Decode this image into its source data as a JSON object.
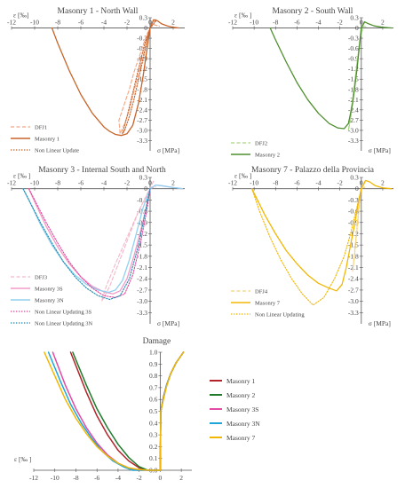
{
  "chart_data": [
    {
      "type": "line",
      "title": "Masonry 1 - North Wall",
      "xlabel": "ε [‰]",
      "ylabel": "σ [MPa]",
      "xlim": [
        -12,
        3
      ],
      "ylim": [
        -3.6,
        0.3
      ],
      "xticks": [
        -12,
        -10,
        -8,
        -6,
        -4,
        -2,
        0,
        2
      ],
      "yticks": [
        0.3,
        0,
        -0.3,
        -0.6,
        -0.9,
        -1.2,
        -1.5,
        -1.8,
        -2.1,
        -2.4,
        -2.7,
        -3.0,
        -3.3
      ],
      "legend_position": "bottom-left",
      "series": [
        {
          "name": "DFJ1",
          "color": "#f4a582",
          "style": "dashed",
          "x": [
            0.5,
            0,
            -0.3,
            -0.6,
            -0.9,
            -1.2,
            -1.5,
            -1.8,
            -2.2,
            -2.6,
            -2.7,
            -2.2,
            -1.8,
            -1.4,
            -1.0,
            -0.6,
            -0.3,
            0,
            0.3,
            0.8
          ],
          "y": [
            0.25,
            0,
            -0.4,
            -0.8,
            -1.2,
            -1.6,
            -2.0,
            -2.4,
            -2.8,
            -3.1,
            -2.7,
            -2.2,
            -1.8,
            -1.3,
            -0.9,
            -0.5,
            -0.2,
            0,
            0.1,
            0.05
          ]
        },
        {
          "name": "Masonry 1",
          "color": "#c8642a",
          "style": "solid",
          "x": [
            -8.5,
            -8,
            -7,
            -6,
            -5,
            -4,
            -3.5,
            -3,
            -2.5,
            -2,
            -1.5,
            -1,
            -0.6,
            -0.3,
            0,
            0.3,
            0.6,
            1,
            1.5,
            2,
            2.5
          ],
          "y": [
            0,
            -0.45,
            -1.25,
            -1.95,
            -2.5,
            -2.9,
            -3.03,
            -3.12,
            -3.15,
            -3.1,
            -2.85,
            -2.2,
            -1.4,
            -0.7,
            0,
            0.24,
            0.22,
            0.12,
            0.06,
            0.02,
            0.0
          ]
        },
        {
          "name": "Non Linear Update",
          "color": "#c8642a",
          "style": "dotted",
          "x": [
            0.5,
            0,
            -0.5,
            -1,
            -1.5,
            -2,
            -2.4,
            -2.2,
            -1.8,
            -1.4,
            -1,
            -0.6,
            -0.3,
            0
          ],
          "y": [
            0.2,
            0,
            -0.5,
            -1.2,
            -1.9,
            -2.6,
            -3.1,
            -3.0,
            -2.6,
            -2.1,
            -1.5,
            -0.9,
            -0.4,
            0
          ]
        }
      ]
    },
    {
      "type": "line",
      "title": "Masonry 2 - South Wall",
      "xlabel": "ε [‰ ]",
      "ylabel": "σ [MPa]",
      "xlim": [
        -12,
        3
      ],
      "ylim": [
        -3.6,
        0.3
      ],
      "xticks": [
        -12,
        -10,
        -8,
        -6,
        -4,
        -2,
        0,
        2
      ],
      "yticks": [
        0.3,
        0,
        -0.3,
        -0.6,
        -0.9,
        -1.2,
        -1.5,
        -1.8,
        -2.1,
        -2.4,
        -2.7,
        -3.0,
        -3.3
      ],
      "legend_position": "bottom-left",
      "series": [
        {
          "name": "DFJ2",
          "color": "#a6d67e",
          "style": "dashed",
          "x": [
            0.3,
            0,
            -0.2,
            -0.5,
            -0.8,
            -1.0,
            -1.2,
            -1.0,
            -0.7,
            -0.4,
            -0.1,
            0.2,
            0.6
          ],
          "y": [
            0.15,
            0,
            -0.5,
            -1.3,
            -2.1,
            -2.7,
            -3.0,
            -2.5,
            -1.8,
            -1.0,
            -0.3,
            0.05,
            0.02
          ]
        },
        {
          "name": "Masonry 2",
          "color": "#4f8f2f",
          "style": "solid",
          "x": [
            -8.5,
            -8,
            -7,
            -6,
            -5,
            -4,
            -3,
            -2.2,
            -1.6,
            -1.2,
            -0.8,
            -0.4,
            0,
            0.3,
            0.7,
            1.2,
            2,
            2.8
          ],
          "y": [
            0,
            -0.35,
            -1.0,
            -1.6,
            -2.1,
            -2.5,
            -2.8,
            -2.93,
            -2.95,
            -2.8,
            -2.2,
            -1.2,
            0,
            0.18,
            0.12,
            0.06,
            0.02,
            0
          ]
        }
      ]
    },
    {
      "type": "line",
      "title": "Masonry 3 - Internal South and North",
      "xlabel": "ε [‰ ]",
      "ylabel": "σ [MPa]",
      "xlim": [
        -12,
        3
      ],
      "ylim": [
        -3.6,
        0.3
      ],
      "xticks": [
        -12,
        -10,
        -8,
        -6,
        -4,
        -2,
        0,
        2
      ],
      "yticks": [
        0.3,
        0,
        -0.3,
        -0.6,
        -0.9,
        -1.2,
        -1.5,
        -1.8,
        -2.1,
        -2.4,
        -2.7,
        -3.0,
        -3.3
      ],
      "legend_position": "bottom-left",
      "series": [
        {
          "name": "DFJ3",
          "color": "#f4b6c8",
          "style": "dashed",
          "x": [
            0.3,
            -1,
            -2,
            -3,
            -3.5,
            -4,
            -4.2,
            -3.8,
            -3,
            -2,
            -1,
            0,
            0.5
          ],
          "y": [
            0.2,
            -0.6,
            -1.4,
            -2.2,
            -2.6,
            -2.9,
            -3.0,
            -2.6,
            -2.0,
            -1.3,
            -0.6,
            0,
            0.05
          ]
        },
        {
          "name": "Masonry 3S",
          "color": "#f39ac8",
          "style": "solid",
          "x": [
            -10.5,
            -10,
            -9,
            -8,
            -7,
            -6,
            -5,
            -4,
            -3.2,
            -2.6,
            -2,
            -1.4,
            -0.8,
            -0.3,
            0,
            0.5,
            1,
            2,
            2.8
          ],
          "y": [
            0,
            -0.35,
            -1.0,
            -1.55,
            -2.0,
            -2.35,
            -2.6,
            -2.75,
            -2.8,
            -2.72,
            -2.4,
            -1.8,
            -1.1,
            -0.45,
            0,
            0.1,
            0.08,
            0.03,
            0
          ]
        },
        {
          "name": "Masonry 3N",
          "color": "#8fd0f0",
          "style": "solid",
          "x": [
            -11,
            -10.5,
            -9.5,
            -8.5,
            -7.5,
            -6.5,
            -5.5,
            -4.5,
            -3.6,
            -3,
            -2.4,
            -1.8,
            -1.2,
            -0.6,
            0,
            0.5,
            1,
            2,
            2.8
          ],
          "y": [
            0,
            -0.3,
            -0.95,
            -1.5,
            -1.95,
            -2.3,
            -2.55,
            -2.7,
            -2.76,
            -2.7,
            -2.45,
            -1.9,
            -1.2,
            -0.5,
            0,
            0.1,
            0.08,
            0.03,
            0
          ]
        },
        {
          "name": "Non Linear Updating 3S",
          "color": "#e0449a",
          "style": "dotted",
          "x": [
            -10.5,
            -10,
            -9,
            -8,
            -7,
            -6,
            -5,
            -4,
            -3,
            -2.2,
            -1.5,
            -0.8,
            -0.3,
            0
          ],
          "y": [
            0,
            -0.3,
            -0.9,
            -1.45,
            -1.95,
            -2.35,
            -2.65,
            -2.85,
            -2.9,
            -2.8,
            -2.3,
            -1.4,
            -0.6,
            0
          ]
        },
        {
          "name": "Non Linear Updating 3N",
          "color": "#1f8ab0",
          "style": "dotted",
          "x": [
            -11,
            -10.5,
            -9.5,
            -8.5,
            -7.5,
            -6.5,
            -5.5,
            -4.5,
            -3.5,
            -2.6,
            -1.8,
            -1.0,
            -0.4,
            0
          ],
          "y": [
            0,
            -0.3,
            -0.9,
            -1.45,
            -1.95,
            -2.35,
            -2.65,
            -2.85,
            -2.95,
            -2.85,
            -2.4,
            -1.5,
            -0.6,
            0
          ]
        }
      ]
    },
    {
      "type": "line",
      "title": "Masonry 7 - Palazzo della Provincia",
      "xlabel": "ε [‰ ]",
      "ylabel": "σ [MPa]",
      "xlim": [
        -12,
        3
      ],
      "ylim": [
        -3.6,
        0.3
      ],
      "xticks": [
        -12,
        -10,
        -8,
        -6,
        -4,
        -2,
        0,
        2
      ],
      "yticks": [
        0.3,
        0,
        -0.3,
        -0.6,
        -0.9,
        -1.2,
        -1.5,
        -1.8,
        -2.1,
        -2.4,
        -2.7,
        -3.0,
        -3.3
      ],
      "legend_position": "bottom-left",
      "series": [
        {
          "name": "DFJ4",
          "color": "#f5d27a",
          "style": "dashed",
          "x": [
            0.3,
            0,
            -0.2,
            -0.4,
            -0.6,
            -0.8,
            -0.6,
            -0.4,
            -0.2,
            0,
            0.4
          ],
          "y": [
            0.15,
            0,
            -0.5,
            -1.1,
            -1.7,
            -2.2,
            -1.6,
            -1.0,
            -0.4,
            0,
            0.05
          ]
        },
        {
          "name": "Masonry 7",
          "color": "#f2b705",
          "style": "solid",
          "x": [
            -10.2,
            -10,
            -9,
            -8,
            -7,
            -6,
            -5,
            -4,
            -3,
            -2.3,
            -1.8,
            -1.4,
            -1,
            -0.6,
            -0.3,
            0,
            0.4,
            0.8,
            1.3,
            2,
            2.8
          ],
          "y": [
            0,
            -0.12,
            -0.7,
            -1.2,
            -1.65,
            -2.0,
            -2.3,
            -2.52,
            -2.65,
            -2.72,
            -2.55,
            -2.1,
            -1.5,
            -0.9,
            -0.4,
            0,
            0.22,
            0.18,
            0.08,
            0.02,
            0
          ]
        },
        {
          "name": "Non Linear Updating",
          "color": "#f2b705",
          "style": "dotted",
          "x": [
            -10.2,
            -9.5,
            -8.5,
            -7.5,
            -6.5,
            -5.5,
            -4.5,
            -3.5,
            -2.5,
            -1.6,
            -1,
            -0.5,
            0
          ],
          "y": [
            0,
            -0.6,
            -1.3,
            -1.9,
            -2.4,
            -2.8,
            -3.1,
            -2.9,
            -2.4,
            -1.8,
            -1.2,
            -0.6,
            0
          ]
        }
      ]
    },
    {
      "type": "line",
      "title": "Damage",
      "xlabel": "ε [‰ ]",
      "xlim": [
        -12,
        3
      ],
      "ylim": [
        0,
        1
      ],
      "xticks": [
        -12,
        -10,
        -8,
        -6,
        -4,
        -2,
        0,
        2
      ],
      "yticks": [
        1.0,
        0.9,
        0.8,
        0.7,
        0.6,
        0.5,
        0.4,
        0.3,
        0.2,
        0.1,
        0.0
      ],
      "legend_position": "right",
      "series": [
        {
          "name": "Masonry 1",
          "color": "#b3242a",
          "x": [
            -8.5,
            -7,
            -6,
            -5,
            -4,
            -3,
            -2,
            -1.2,
            -0.6,
            0,
            0.05,
            0.3,
            0.6,
            1,
            1.5,
            2.2
          ],
          "y": [
            1.0,
            0.66,
            0.46,
            0.3,
            0.17,
            0.08,
            0.02,
            0.0,
            0.0,
            0.0,
            0.5,
            0.62,
            0.72,
            0.82,
            0.91,
            1.0
          ]
        },
        {
          "name": "Masonry 2",
          "color": "#1f7a2a",
          "x": [
            -8.3,
            -7,
            -6,
            -5,
            -4,
            -3,
            -2,
            -1.2,
            -0.6,
            0,
            0.05,
            0.3,
            0.6,
            1,
            1.5,
            2.2
          ],
          "y": [
            1.0,
            0.72,
            0.52,
            0.36,
            0.22,
            0.11,
            0.03,
            0.0,
            0.0,
            0.0,
            0.5,
            0.61,
            0.72,
            0.82,
            0.91,
            1.0
          ]
        },
        {
          "name": "Masonry 3S",
          "color": "#e34ca6",
          "x": [
            -10.2,
            -9,
            -8,
            -7,
            -6,
            -5,
            -4,
            -3,
            -2.2,
            -1.5,
            0,
            0.05,
            0.3,
            0.6,
            1,
            1.5,
            2.2
          ],
          "y": [
            1.0,
            0.72,
            0.52,
            0.36,
            0.23,
            0.13,
            0.06,
            0.02,
            0.0,
            0.0,
            0.0,
            0.5,
            0.61,
            0.72,
            0.82,
            0.91,
            1.0
          ]
        },
        {
          "name": "Masonry 3N",
          "color": "#1ea6d8",
          "x": [
            -10.6,
            -9.5,
            -8.5,
            -7.5,
            -6.5,
            -5.5,
            -4.5,
            -3.5,
            -2.6,
            -1.5,
            0,
            0.05,
            0.3,
            0.6,
            1,
            1.5,
            2.2
          ],
          "y": [
            1.0,
            0.76,
            0.56,
            0.4,
            0.27,
            0.16,
            0.08,
            0.03,
            0.0,
            0.0,
            0.0,
            0.5,
            0.61,
            0.72,
            0.82,
            0.91,
            1.0
          ]
        },
        {
          "name": "Masonry 7",
          "color": "#f2b705",
          "x": [
            -11,
            -10,
            -9,
            -8,
            -7,
            -6,
            -5,
            -4,
            -3,
            -2,
            -1,
            0,
            0.05,
            0.3,
            0.6,
            1,
            1.5,
            2.2
          ],
          "y": [
            1.0,
            0.8,
            0.6,
            0.44,
            0.31,
            0.2,
            0.12,
            0.06,
            0.02,
            0.005,
            0.0,
            0.0,
            0.5,
            0.6,
            0.71,
            0.82,
            0.91,
            1.0
          ]
        }
      ]
    }
  ]
}
